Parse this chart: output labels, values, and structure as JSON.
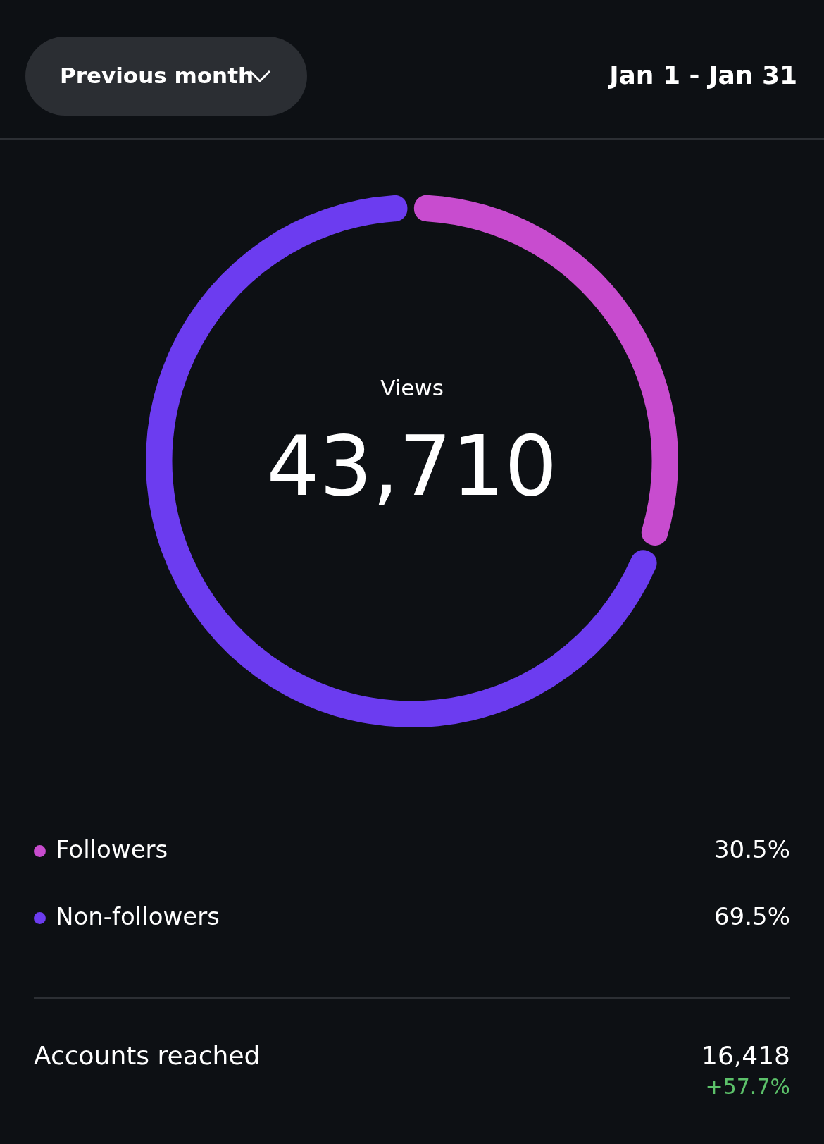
{
  "chart_data": {
    "type": "donut",
    "title": "Views",
    "categories": [
      "Followers",
      "Non-followers"
    ],
    "values": [
      30.5,
      69.5
    ],
    "colors": [
      "#c84ccf",
      "#6c3cf0"
    ],
    "value_labels": [
      "30.5%",
      "69.5%"
    ],
    "legend": "bottom",
    "annotations": [
      "Previous month",
      "Jan 1 - Jan 31",
      "43,710",
      "Accounts reached",
      "16,418",
      "+57.7%"
    ]
  }
}
